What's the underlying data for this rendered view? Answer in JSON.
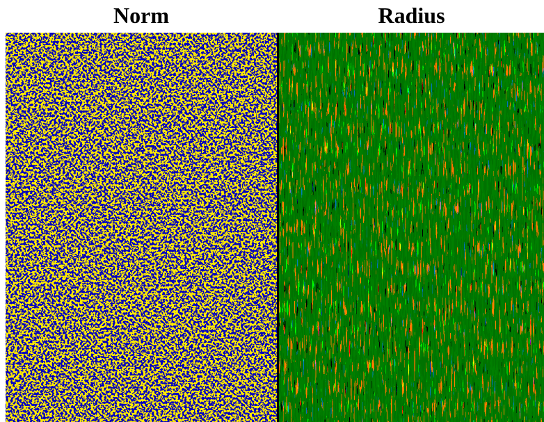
{
  "titles": {
    "left": "Norm",
    "right": "Radius"
  }
}
